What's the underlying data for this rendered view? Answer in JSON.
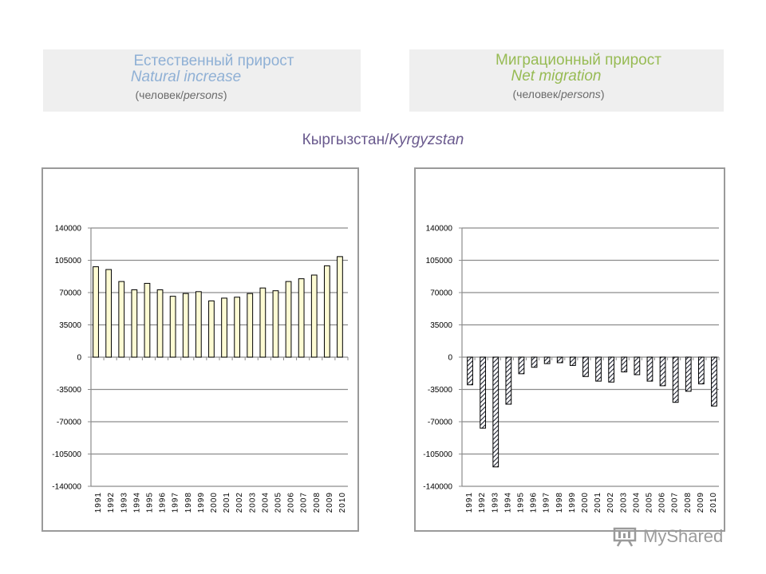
{
  "header_left": {
    "ru": "Естественный прирост",
    "en": "Natural increase",
    "unit_open": "(человек/",
    "unit_en": "persons",
    "unit_close": ")"
  },
  "header_right": {
    "ru": "Миграционный прирост",
    "en": "Net migration",
    "unit_open": "(человек/",
    "unit_en": "persons",
    "unit_close": ")"
  },
  "country": {
    "ru": "Кыргызстан/",
    "en": "Kyrgyzstan"
  },
  "watermark": {
    "text": "MyShared"
  },
  "colors": {
    "bar_fill_left": "#fdfbd3",
    "hatch": "#1e2230",
    "grid": "#8c8c8c"
  },
  "chart_data": [
    {
      "type": "bar",
      "title": "Natural increase",
      "ylim": [
        -140000,
        140000
      ],
      "yticks": [
        140000,
        105000,
        70000,
        35000,
        0,
        -35000,
        -70000,
        -105000,
        -140000
      ],
      "grid": true,
      "categories": [
        "1991",
        "1992",
        "1993",
        "1994",
        "1995",
        "1996",
        "1997",
        "1998",
        "1999",
        "2000",
        "2001",
        "2002",
        "2003",
        "2004",
        "2005",
        "2006",
        "2007",
        "2008",
        "2009",
        "2010"
      ],
      "values": [
        98000,
        95000,
        82000,
        73000,
        80000,
        73000,
        66000,
        69000,
        71000,
        61000,
        64000,
        65000,
        69000,
        75000,
        72000,
        82000,
        85000,
        89000,
        99000,
        109000
      ]
    },
    {
      "type": "bar",
      "title": "Net migration",
      "ylim": [
        -140000,
        140000
      ],
      "yticks": [
        140000,
        105000,
        70000,
        35000,
        0,
        -35000,
        -70000,
        -105000,
        -140000
      ],
      "grid": true,
      "categories": [
        "1991",
        "1992",
        "1993",
        "1994",
        "1995",
        "1996",
        "1997",
        "1998",
        "1999",
        "2000",
        "2001",
        "2002",
        "2003",
        "2004",
        "2005",
        "2006",
        "2007",
        "2008",
        "2009",
        "2010"
      ],
      "values": [
        -30000,
        -77000,
        -119000,
        -51000,
        -18000,
        -11000,
        -7000,
        -6000,
        -9000,
        -21000,
        -26000,
        -27000,
        -16000,
        -19000,
        -26000,
        -31000,
        -49000,
        -37000,
        -29000,
        -53000
      ]
    }
  ]
}
